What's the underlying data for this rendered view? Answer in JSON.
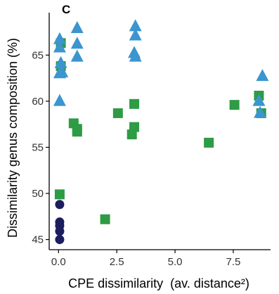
{
  "chart_data": {
    "type": "scatter",
    "panel_label": "C",
    "xlabel": "CPE dissimilarity  (av. distance²)",
    "ylabel": "Dissimilarity genus composition (%)",
    "xlim": [
      -0.4,
      9.1
    ],
    "ylim": [
      43.9,
      69.6
    ],
    "x_ticks": [
      0.0,
      2.5,
      5.0,
      7.5
    ],
    "x_tick_labels": [
      "0.0",
      "2.5",
      "5.0",
      "7.5"
    ],
    "y_ticks": [
      45,
      50,
      55,
      60,
      65
    ],
    "y_tick_labels": [
      "45",
      "50",
      "55",
      "60",
      "65"
    ],
    "grid": false,
    "legend": "none",
    "series": [
      {
        "marker": "circle",
        "color": "#1c1d5e",
        "points": [
          [
            0.05,
            48.8
          ],
          [
            0.05,
            46.9
          ],
          [
            0.05,
            46.5
          ],
          [
            0.05,
            45.9
          ],
          [
            0.05,
            45.0
          ]
        ]
      },
      {
        "marker": "square",
        "color": "#2e9b45",
        "points": [
          [
            0.1,
            66.3
          ],
          [
            0.1,
            63.8
          ],
          [
            0.05,
            49.9
          ],
          [
            0.65,
            57.6
          ],
          [
            0.8,
            57.0
          ],
          [
            0.8,
            56.7
          ],
          [
            2.0,
            47.2
          ],
          [
            2.55,
            58.7
          ],
          [
            3.25,
            59.7
          ],
          [
            3.25,
            57.2
          ],
          [
            3.15,
            56.4
          ],
          [
            6.45,
            55.5
          ],
          [
            7.55,
            59.6
          ],
          [
            8.6,
            60.6
          ],
          [
            8.7,
            58.7
          ]
        ]
      },
      {
        "marker": "triangle",
        "color": "#3b95cf",
        "points": [
          [
            0.05,
            66.8
          ],
          [
            0.05,
            65.9
          ],
          [
            0.1,
            64.2
          ],
          [
            0.05,
            63.1
          ],
          [
            0.15,
            63.2
          ],
          [
            0.05,
            60.1
          ],
          [
            0.8,
            68.0
          ],
          [
            0.8,
            66.3
          ],
          [
            0.8,
            64.9
          ],
          [
            3.3,
            68.2
          ],
          [
            3.3,
            67.2
          ],
          [
            3.25,
            65.3
          ],
          [
            3.3,
            64.9
          ],
          [
            8.75,
            62.8
          ],
          [
            8.6,
            60.1
          ],
          [
            8.65,
            58.8
          ]
        ]
      }
    ]
  }
}
